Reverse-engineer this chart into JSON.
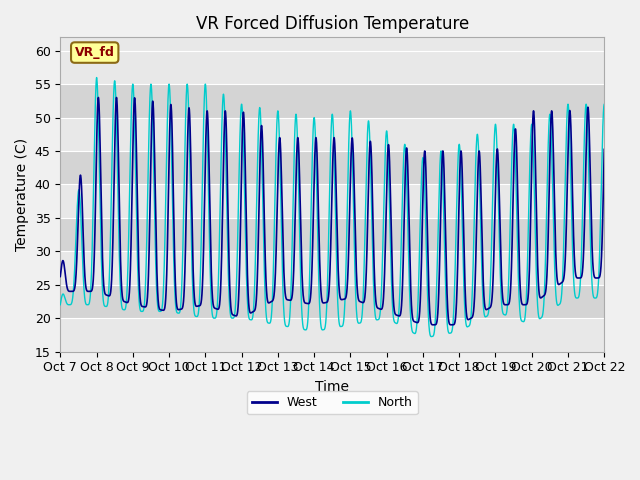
{
  "title": "VR Forced Diffusion Temperature",
  "xlabel": "Time",
  "ylabel": "Temperature (C)",
  "ylim": [
    15,
    62
  ],
  "xlim": [
    0,
    15
  ],
  "fig_bg": "#f0f0f0",
  "plot_bg": "#e8e8e8",
  "west_color": "#00008B",
  "north_color": "#00CCCC",
  "legend_west": "West",
  "legend_north": "North",
  "label_text": "VR_fd",
  "label_bg": "#FFFF99",
  "label_fg": "#8B0000",
  "label_border": "#8B6914",
  "xtick_labels": [
    "Oct 7",
    "Oct 8",
    "Oct 9",
    "Oct 10",
    "Oct 11",
    "Oct 12",
    "Oct 13",
    "Oct 14",
    "Oct 15",
    "Oct 16",
    "Oct 17",
    "Oct 18",
    "Oct 19",
    "Oct 20",
    "Oct 21",
    "Oct 22"
  ],
  "ytick_labels": [
    15,
    20,
    25,
    30,
    35,
    40,
    45,
    50,
    55,
    60
  ],
  "band_colors": [
    "#e8e8e8",
    "#d4d4d4"
  ],
  "title_fontsize": 12,
  "axis_fontsize": 9,
  "label_fontsize": 9
}
